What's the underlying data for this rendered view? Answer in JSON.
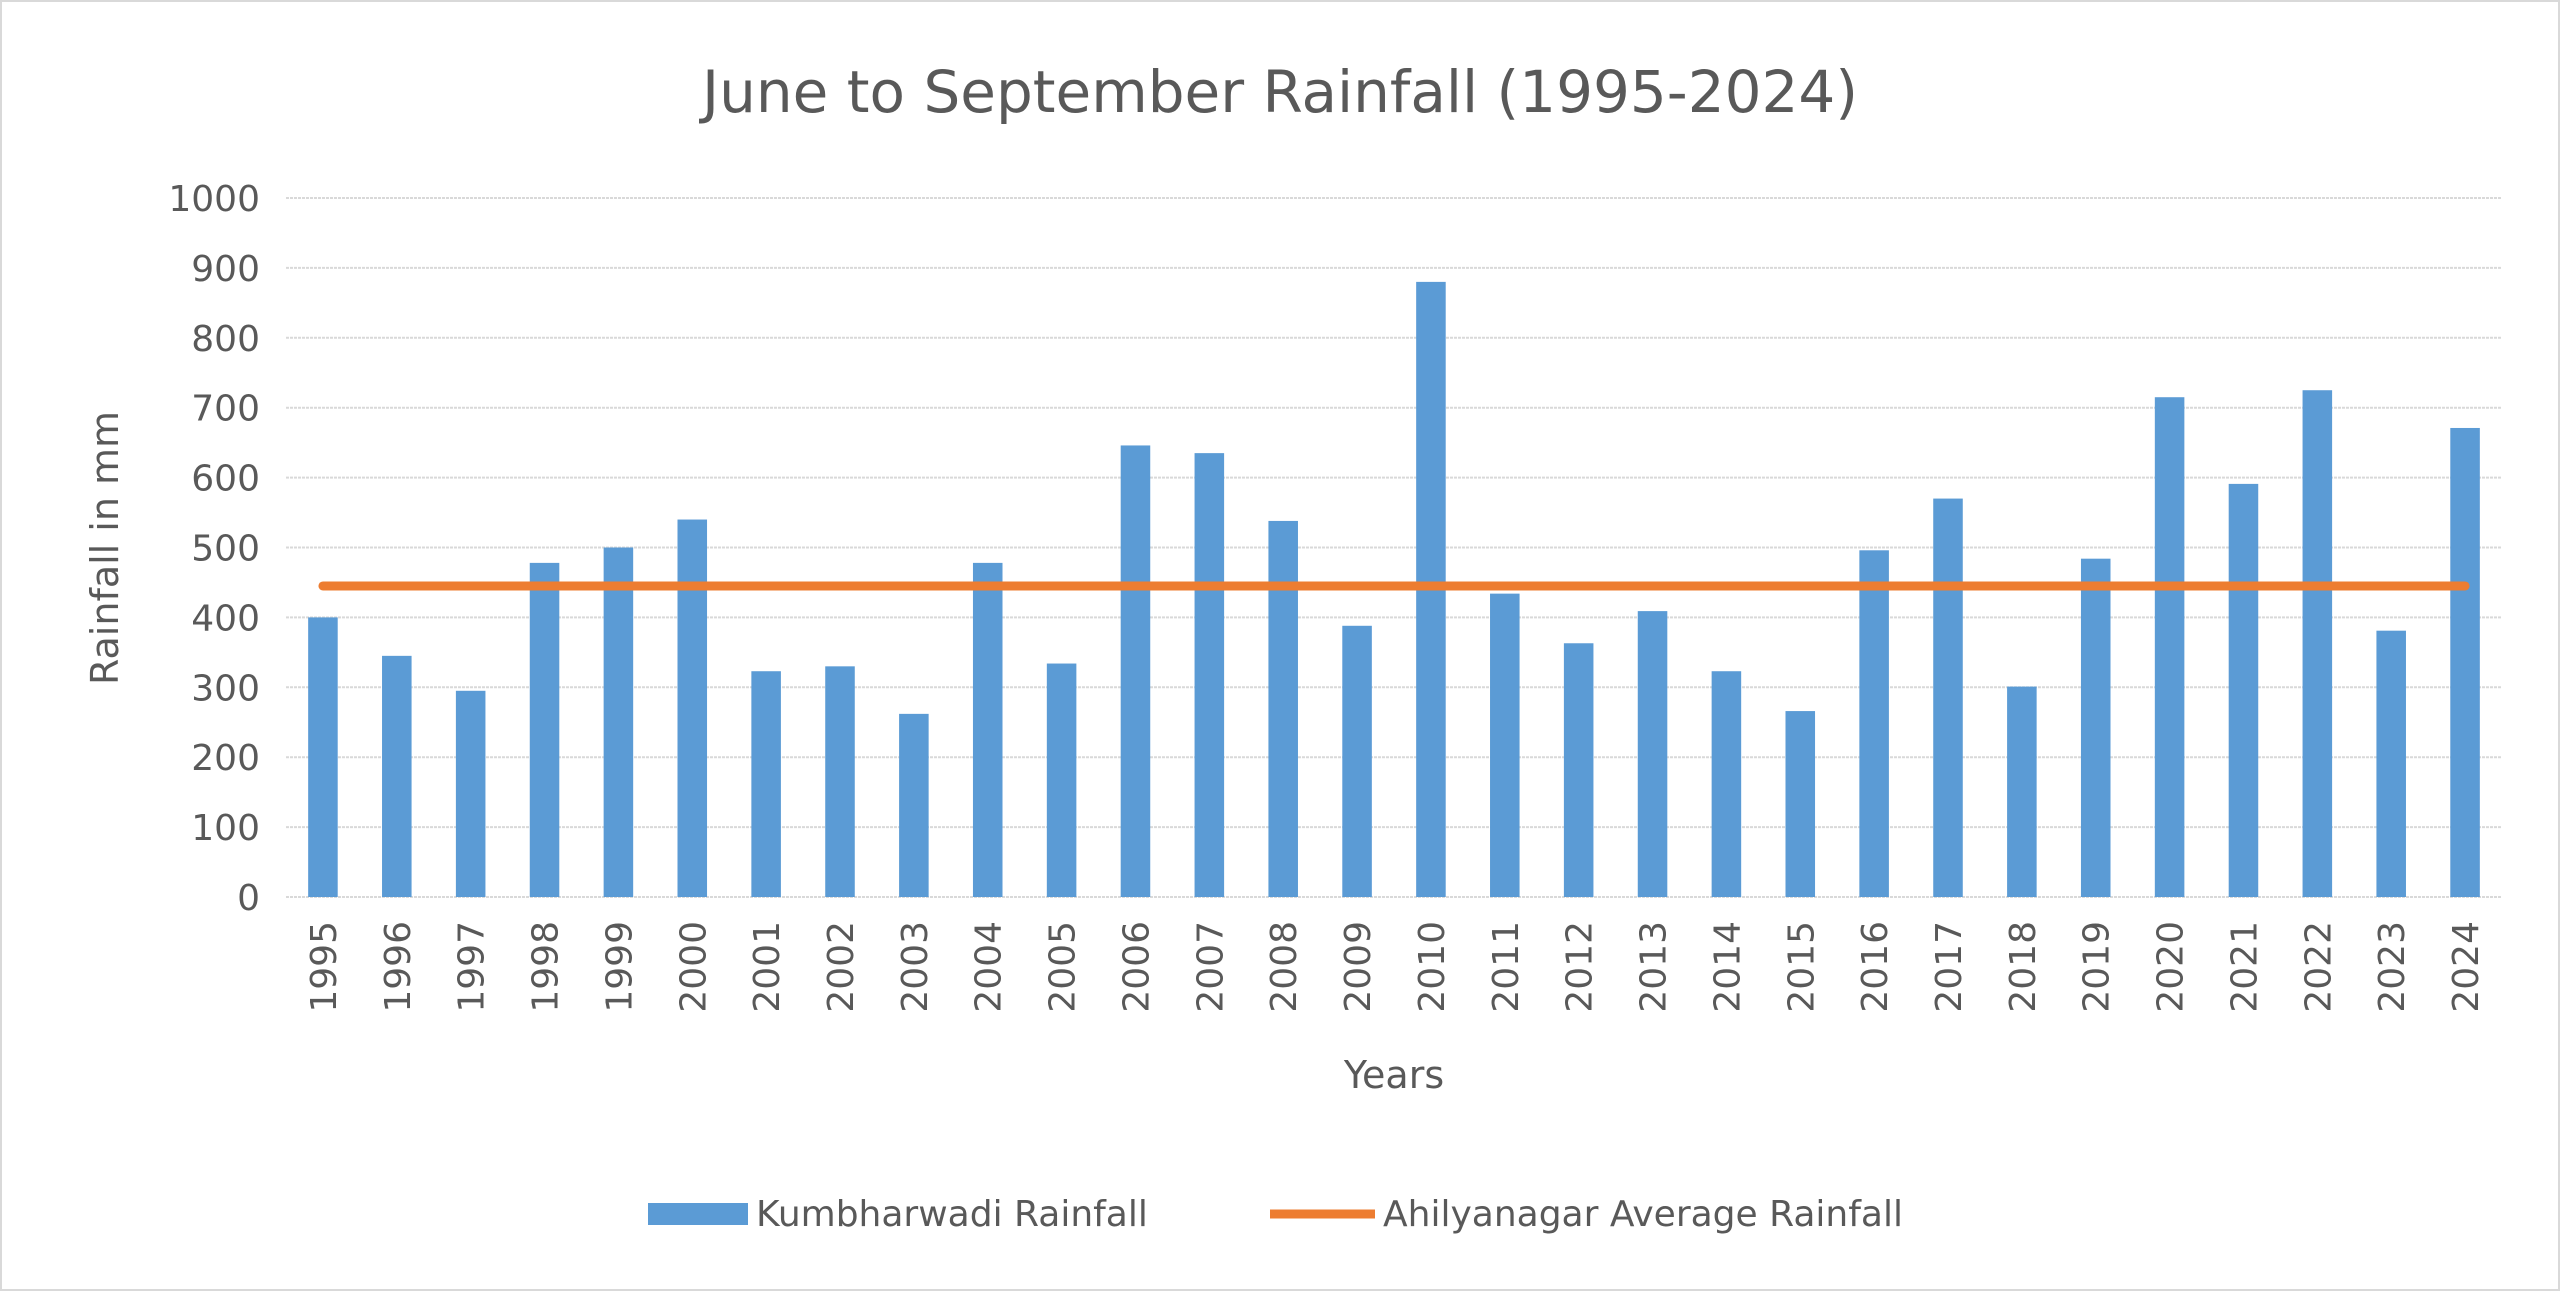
{
  "chart_data": {
    "type": "bar",
    "title": "June to September Rainfall (1995-2024)",
    "xlabel": "Years",
    "ylabel": "Rainfall in mm",
    "ylim": [
      0,
      1000
    ],
    "yticks": [
      0,
      100,
      200,
      300,
      400,
      500,
      600,
      700,
      800,
      900,
      1000
    ],
    "grid": true,
    "legend_position": "bottom",
    "categories": [
      "1995",
      "1996",
      "1997",
      "1998",
      "1999",
      "2000",
      "2001",
      "2002",
      "2003",
      "2004",
      "2005",
      "2006",
      "2007",
      "2008",
      "2009",
      "2010",
      "2011",
      "2012",
      "2013",
      "2014",
      "2015",
      "2016",
      "2017",
      "2018",
      "2019",
      "2020",
      "2021",
      "2022",
      "2023",
      "2024"
    ],
    "series": [
      {
        "name": "Kumbharwadi Rainfall",
        "type": "bar",
        "color": "#5B9BD5",
        "values": [
          400,
          345,
          295,
          478,
          500,
          540,
          323,
          330,
          262,
          478,
          334,
          646,
          635,
          538,
          388,
          880,
          434,
          363,
          409,
          323,
          266,
          496,
          570,
          301,
          484,
          715,
          591,
          725,
          381,
          671
        ]
      },
      {
        "name": "Ahilyanagar Average Rainfall",
        "type": "line",
        "color": "#ED7D31",
        "values": [
          445,
          445,
          445,
          445,
          445,
          445,
          445,
          445,
          445,
          445,
          445,
          445,
          445,
          445,
          445,
          445,
          445,
          445,
          445,
          445,
          445,
          445,
          445,
          445,
          445,
          445,
          445,
          445,
          445,
          445
        ]
      }
    ]
  }
}
